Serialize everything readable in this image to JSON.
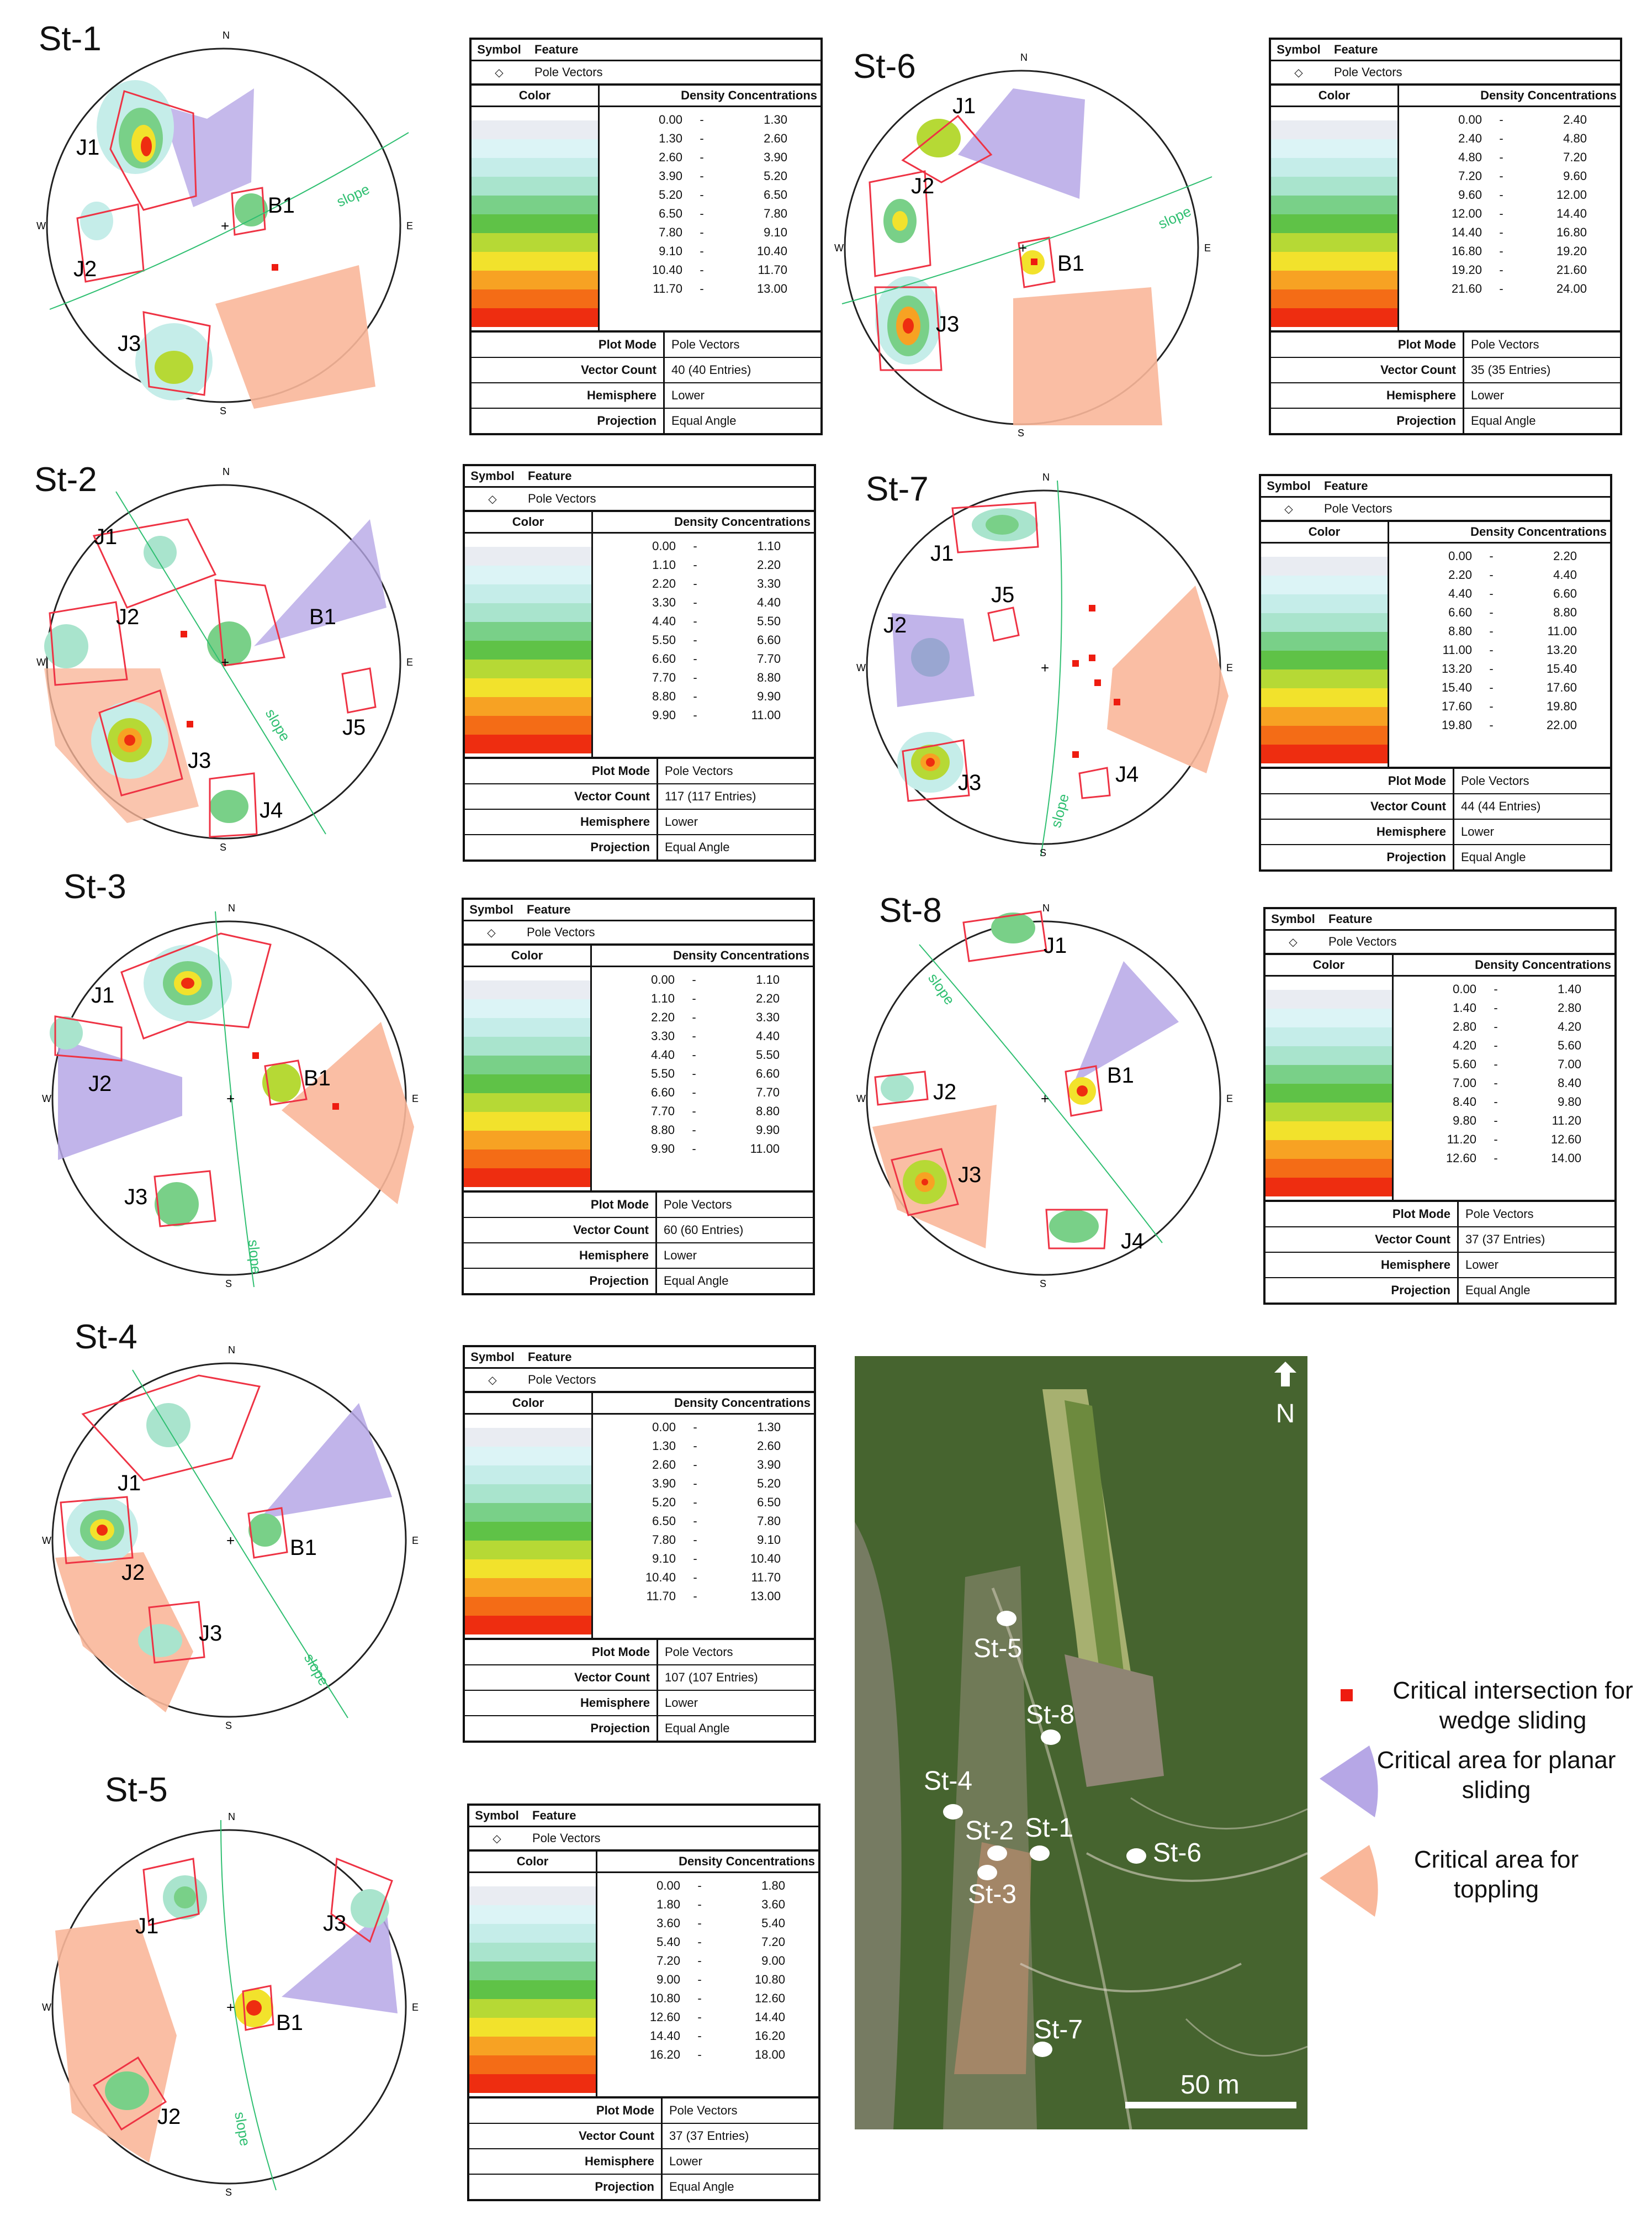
{
  "table_labels": {
    "symbol": "Symbol",
    "feature": "Feature",
    "pole_symbol": "◇",
    "pole_feature": "Pole Vectors",
    "color": "Color",
    "density": "Density Concentrations",
    "plot_mode": "Plot Mode",
    "vector_count": "Vector Count",
    "hemisphere": "Hemisphere",
    "projection": "Projection"
  },
  "compass": {
    "n": "N",
    "e": "E",
    "s": "S",
    "w": "W"
  },
  "ramp_colors": [
    "#ffffff",
    "#e9ecf2",
    "#dcf4f6",
    "#c5ede9",
    "#a9e4cd",
    "#79d088",
    "#5fc247",
    "#b6d935",
    "#f2e22c",
    "#f7a223",
    "#f46c16",
    "#ee2d10"
  ],
  "stations": [
    {
      "title": "St-1",
      "slope_label": "slope",
      "labels": [
        "J1",
        "J2",
        "J3",
        "B1"
      ],
      "ranges": [
        [
          "0.00",
          "1.30"
        ],
        [
          "1.30",
          "2.60"
        ],
        [
          "2.60",
          "3.90"
        ],
        [
          "3.90",
          "5.20"
        ],
        [
          "5.20",
          "6.50"
        ],
        [
          "6.50",
          "7.80"
        ],
        [
          "7.80",
          "9.10"
        ],
        [
          "9.10",
          "10.40"
        ],
        [
          "10.40",
          "11.70"
        ],
        [
          "11.70",
          "13.00"
        ]
      ],
      "plot_mode": "Pole Vectors",
      "vector_count": "40 (40 Entries)",
      "hemisphere": "Lower",
      "projection": "Equal Angle"
    },
    {
      "title": "St-2",
      "slope_label": "slope",
      "labels": [
        "J1",
        "J2",
        "J3",
        "J4",
        "J5",
        "B1"
      ],
      "ranges": [
        [
          "0.00",
          "1.10"
        ],
        [
          "1.10",
          "2.20"
        ],
        [
          "2.20",
          "3.30"
        ],
        [
          "3.30",
          "4.40"
        ],
        [
          "4.40",
          "5.50"
        ],
        [
          "5.50",
          "6.60"
        ],
        [
          "6.60",
          "7.70"
        ],
        [
          "7.70",
          "8.80"
        ],
        [
          "8.80",
          "9.90"
        ],
        [
          "9.90",
          "11.00"
        ]
      ],
      "plot_mode": "Pole Vectors",
      "vector_count": "117 (117 Entries)",
      "hemisphere": "Lower",
      "projection": "Equal Angle"
    },
    {
      "title": "St-3",
      "slope_label": "slope",
      "labels": [
        "J1",
        "J2",
        "J3",
        "B1"
      ],
      "ranges": [
        [
          "0.00",
          "1.10"
        ],
        [
          "1.10",
          "2.20"
        ],
        [
          "2.20",
          "3.30"
        ],
        [
          "3.30",
          "4.40"
        ],
        [
          "4.40",
          "5.50"
        ],
        [
          "5.50",
          "6.60"
        ],
        [
          "6.60",
          "7.70"
        ],
        [
          "7.70",
          "8.80"
        ],
        [
          "8.80",
          "9.90"
        ],
        [
          "9.90",
          "11.00"
        ]
      ],
      "plot_mode": "Pole Vectors",
      "vector_count": "60 (60 Entries)",
      "hemisphere": "Lower",
      "projection": "Equal Angle"
    },
    {
      "title": "St-4",
      "slope_label": "slope",
      "labels": [
        "J1",
        "J2",
        "J3",
        "B1"
      ],
      "ranges": [
        [
          "0.00",
          "1.30"
        ],
        [
          "1.30",
          "2.60"
        ],
        [
          "2.60",
          "3.90"
        ],
        [
          "3.90",
          "5.20"
        ],
        [
          "5.20",
          "6.50"
        ],
        [
          "6.50",
          "7.80"
        ],
        [
          "7.80",
          "9.10"
        ],
        [
          "9.10",
          "10.40"
        ],
        [
          "10.40",
          "11.70"
        ],
        [
          "11.70",
          "13.00"
        ]
      ],
      "plot_mode": "Pole Vectors",
      "vector_count": "107 (107 Entries)",
      "hemisphere": "Lower",
      "projection": "Equal Angle"
    },
    {
      "title": "St-5",
      "slope_label": "slope",
      "labels": [
        "J1",
        "J2",
        "J3",
        "B1"
      ],
      "ranges": [
        [
          "0.00",
          "1.80"
        ],
        [
          "1.80",
          "3.60"
        ],
        [
          "3.60",
          "5.40"
        ],
        [
          "5.40",
          "7.20"
        ],
        [
          "7.20",
          "9.00"
        ],
        [
          "9.00",
          "10.80"
        ],
        [
          "10.80",
          "12.60"
        ],
        [
          "12.60",
          "14.40"
        ],
        [
          "14.40",
          "16.20"
        ],
        [
          "16.20",
          "18.00"
        ]
      ],
      "plot_mode": "Pole Vectors",
      "vector_count": "37 (37 Entries)",
      "hemisphere": "Lower",
      "projection": "Equal Angle"
    },
    {
      "title": "St-6",
      "slope_label": "slope",
      "labels": [
        "J1",
        "J2",
        "J3",
        "B1"
      ],
      "ranges": [
        [
          "0.00",
          "2.40"
        ],
        [
          "2.40",
          "4.80"
        ],
        [
          "4.80",
          "7.20"
        ],
        [
          "7.20",
          "9.60"
        ],
        [
          "9.60",
          "12.00"
        ],
        [
          "12.00",
          "14.40"
        ],
        [
          "14.40",
          "16.80"
        ],
        [
          "16.80",
          "19.20"
        ],
        [
          "19.20",
          "21.60"
        ],
        [
          "21.60",
          "24.00"
        ]
      ],
      "plot_mode": "Pole Vectors",
      "vector_count": "35 (35 Entries)",
      "hemisphere": "Lower",
      "projection": "Equal Angle"
    },
    {
      "title": "St-7",
      "slope_label": "slope",
      "labels": [
        "J1",
        "J2",
        "J4",
        "J5",
        "J3"
      ],
      "ranges": [
        [
          "0.00",
          "2.20"
        ],
        [
          "2.20",
          "4.40"
        ],
        [
          "4.40",
          "6.60"
        ],
        [
          "6.60",
          "8.80"
        ],
        [
          "8.80",
          "11.00"
        ],
        [
          "11.00",
          "13.20"
        ],
        [
          "13.20",
          "15.40"
        ],
        [
          "15.40",
          "17.60"
        ],
        [
          "17.60",
          "19.80"
        ],
        [
          "19.80",
          "22.00"
        ]
      ],
      "plot_mode": "Pole Vectors",
      "vector_count": "44 (44 Entries)",
      "hemisphere": "Lower",
      "projection": "Equal Angle"
    },
    {
      "title": "St-8",
      "slope_label": "slope",
      "labels": [
        "J1",
        "J2",
        "J3",
        "J4",
        "B1"
      ],
      "ranges": [
        [
          "0.00",
          "1.40"
        ],
        [
          "1.40",
          "2.80"
        ],
        [
          "2.80",
          "4.20"
        ],
        [
          "4.20",
          "5.60"
        ],
        [
          "5.60",
          "7.00"
        ],
        [
          "7.00",
          "8.40"
        ],
        [
          "8.40",
          "9.80"
        ],
        [
          "9.80",
          "11.20"
        ],
        [
          "11.20",
          "12.60"
        ],
        [
          "12.60",
          "14.00"
        ]
      ],
      "plot_mode": "Pole Vectors",
      "vector_count": "37 (37 Entries)",
      "hemisphere": "Lower",
      "projection": "Equal Angle"
    }
  ],
  "map": {
    "north": "N",
    "scale": "50 m",
    "stations": [
      "St-5",
      "St-8",
      "St-4",
      "St-2",
      "St-1",
      "St-6",
      "St-3",
      "St-7"
    ]
  },
  "legend": {
    "wedge": "Critical intersection for wedge sliding",
    "planar": "Critical area for planar sliding",
    "toppling": "Critical area for toppling",
    "wedge_color": "#ee1c10",
    "planar_color": "#b6a7e6",
    "toppling_color": "#f9b79a"
  }
}
